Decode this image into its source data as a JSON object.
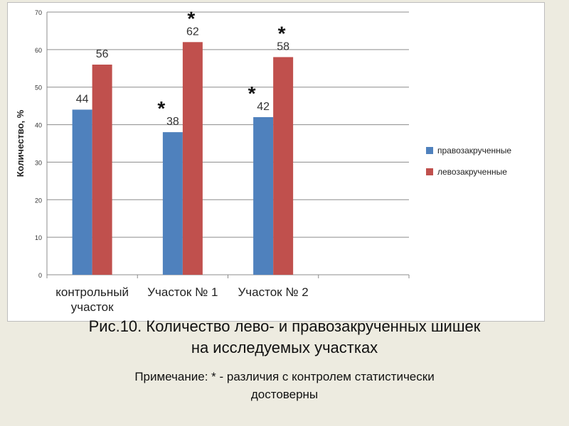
{
  "caption": {
    "line1": "Рис.10.  Количество лево- и правозакрученных шишек",
    "line2": "на исследуемых участках"
  },
  "note": {
    "line1": "Примечание: * - различия с контролем статистически",
    "line2": "достоверны"
  },
  "chart_data": {
    "type": "bar",
    "title": "",
    "xlabel": "",
    "ylabel": "Количество, %",
    "ylim": [
      0,
      70
    ],
    "yticks": [
      0,
      10,
      20,
      30,
      40,
      50,
      60,
      70
    ],
    "grid": true,
    "legend_position": "right",
    "categories": [
      [
        "контрольный",
        "участок"
      ],
      [
        "Участок № 1"
      ],
      [
        "Участок № 2"
      ]
    ],
    "series": [
      {
        "name": "правозакрученные",
        "color": "#4f81bd",
        "values": [
          44,
          38,
          42
        ],
        "significant": [
          false,
          true,
          true
        ]
      },
      {
        "name": "левозакрученные",
        "color": "#c0504d",
        "values": [
          56,
          62,
          58
        ],
        "significant": [
          false,
          true,
          true
        ]
      }
    ],
    "significance_mark": "*"
  }
}
